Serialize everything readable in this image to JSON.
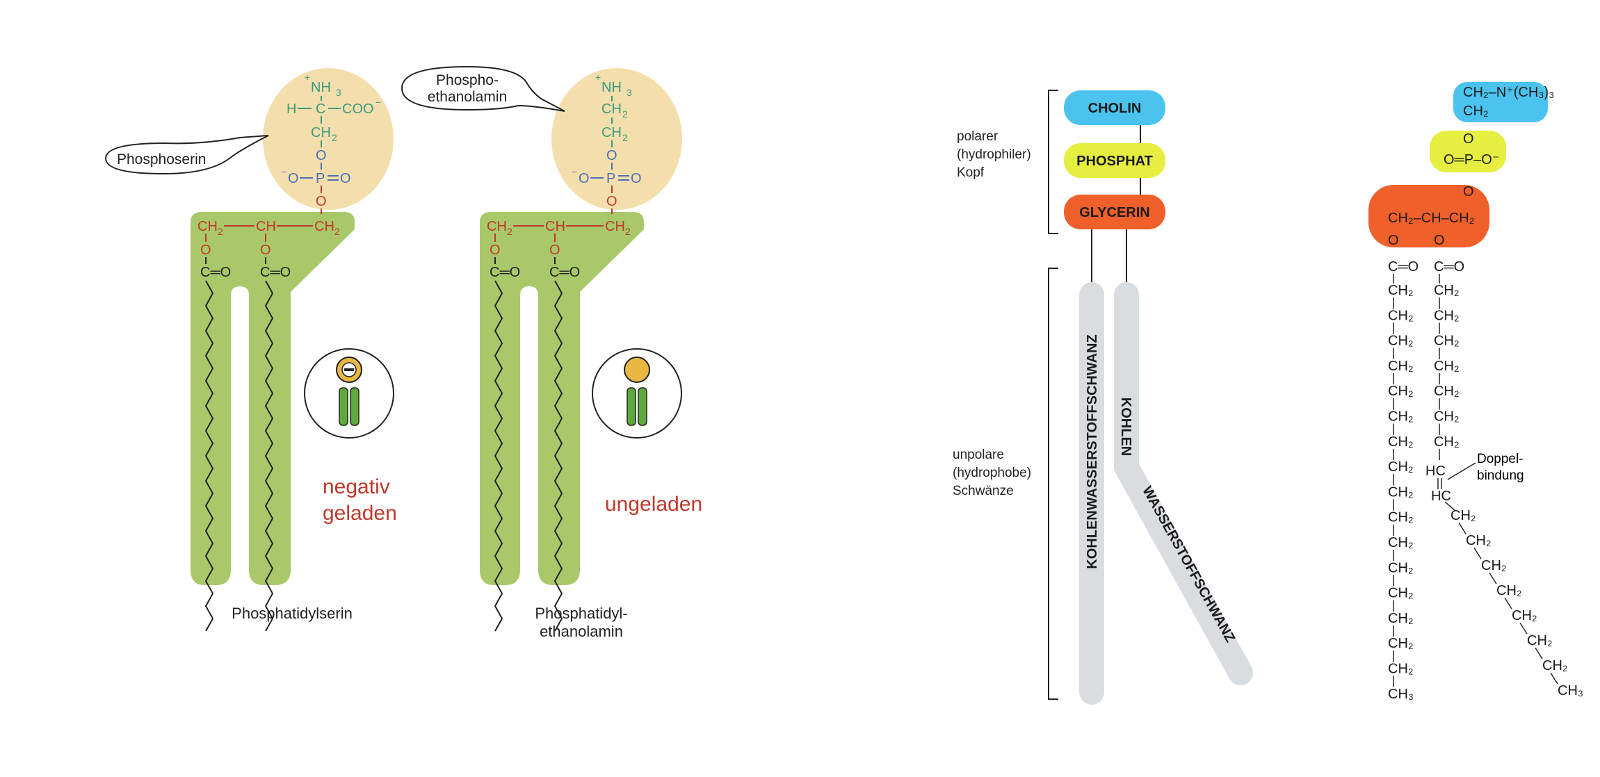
{
  "colors": {
    "green": "#A9C86A",
    "cream": "#F4DFAC",
    "red_text": "#C0392B",
    "teal_text": "#3A9A7E",
    "blue_text": "#4A6FB5",
    "cholin": "#4CC3EE",
    "phosphat": "#E6EE40",
    "glycerin": "#F0602A",
    "tail_gray": "#DADDDF"
  },
  "left": {
    "serin": {
      "nh3": "NH",
      "nh3_sub": "3",
      "plus": "+",
      "h": "H",
      "c": "C",
      "cooh": "COO",
      "minus": "−",
      "ch2": "CH",
      "sub2": "2",
      "o": "O",
      "p": "P",
      "callout": "Phosphoserin",
      "charge": "negativ",
      "charge2": "geladen",
      "name": "Phosphatidylserin"
    },
    "ethanol": {
      "callout1": "Phospho-",
      "callout2": "ethanolamin",
      "charge": "ungeladen",
      "name1": "Phosphatidyl-",
      "name2": "ethanolamin"
    },
    "backbone": {
      "ch": "CH",
      "ceo": "C═O"
    },
    "icons": [
      "negative-head-icon",
      "neutral-head-icon"
    ]
  },
  "middle": {
    "head_label": [
      "polarer",
      "(hydrophiler)",
      "Kopf"
    ],
    "tail_label": [
      "unpolare",
      "(hydrophobe)",
      "Schwänze"
    ],
    "boxes": {
      "cholin": "CHOLIN",
      "phosphat": "PHOSPHAT",
      "glycerin": "GLYCERIN"
    },
    "tail1": "KOHLENWASSERSTOFFSCHWANZ",
    "tail2a": "KOHLEN",
    "tail2b": "WASSERSTOFFSCHWANZ"
  },
  "right": {
    "cholin_formula": "CH₂–N⁺(CH₃)₃",
    "cholin_ch2": "CH₂",
    "o": "O",
    "phosphat_formula": "O═P–O⁻",
    "glycerin_formula": "CH₂–CH–CH₂",
    "ceo": "C═O",
    "ch2": "CH₂",
    "ch3": "CH₃",
    "hc": "HC",
    "double_bond_label1": "Doppel-",
    "double_bond_label2": "bindung"
  }
}
